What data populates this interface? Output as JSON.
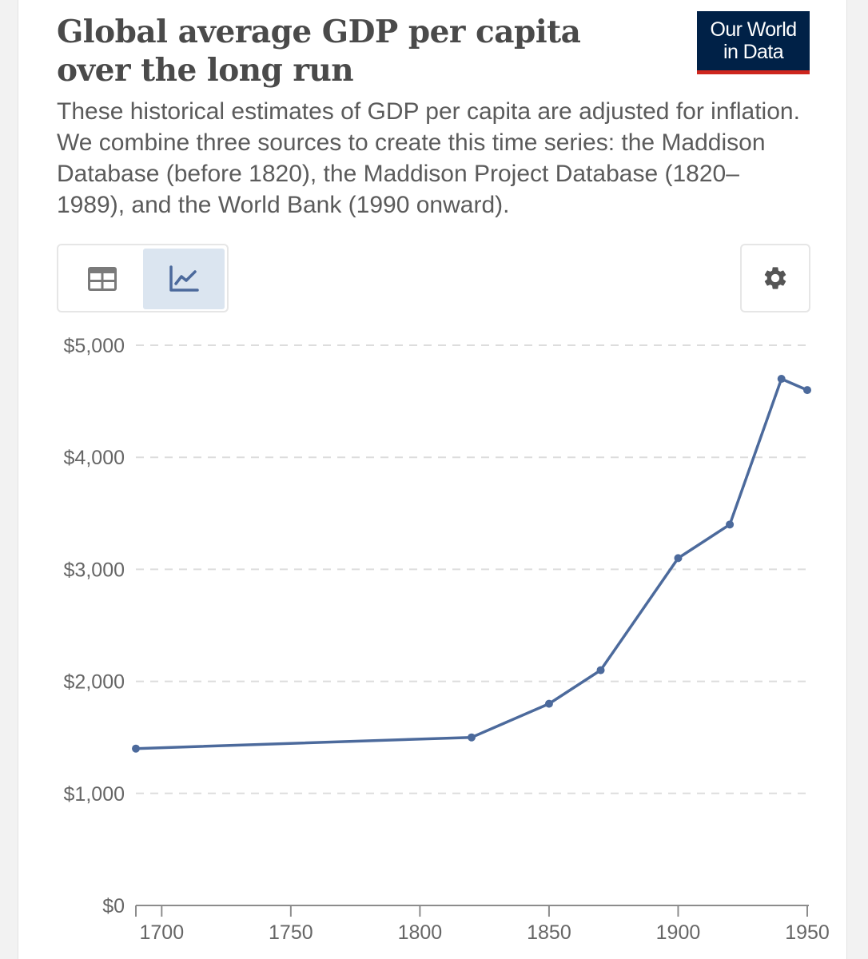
{
  "header": {
    "title": "Global average GDP per capita over the long run",
    "subtitle": "These historical estimates of GDP per capita are adjusted for inflation. We combine three sources to create this time series: the Maddison Database (before 1820), the Maddison Project Database (1820–1989), and the World Bank (1990 onward).",
    "logo_line1": "Our World",
    "logo_line2": "in Data"
  },
  "controls": {
    "tabs": [
      {
        "name": "table",
        "icon": "table-icon",
        "active": false
      },
      {
        "name": "chart",
        "icon": "line-chart-icon",
        "active": true
      }
    ],
    "settings_icon": "gear-icon"
  },
  "colors": {
    "line": "#4c6a9c",
    "tab_active_bg": "#dbe5f0",
    "logo_bg": "#002147",
    "logo_accent": "#ce261e"
  },
  "chart_data": {
    "type": "line",
    "title": "",
    "xlabel": "",
    "ylabel": "",
    "xlim": [
      1690,
      1950
    ],
    "ylim": [
      0,
      5000
    ],
    "x_ticks": [
      1700,
      1750,
      1800,
      1850,
      1900,
      1950
    ],
    "x_tick_labels": [
      "1700",
      "1750",
      "1800",
      "1850",
      "1900",
      "1950"
    ],
    "y_ticks": [
      0,
      1000,
      2000,
      3000,
      4000,
      5000
    ],
    "y_tick_labels": [
      "$0",
      "$1,000",
      "$2,000",
      "$3,000",
      "$4,000",
      "$5,000"
    ],
    "grid": "horizontal-dashed",
    "legend": "none",
    "series": [
      {
        "x": [
          1690,
          1820,
          1850,
          1870,
          1900,
          1920,
          1940,
          1950
        ],
        "y": [
          1400,
          1500,
          1800,
          2100,
          3100,
          3400,
          4700,
          4600
        ]
      }
    ]
  }
}
